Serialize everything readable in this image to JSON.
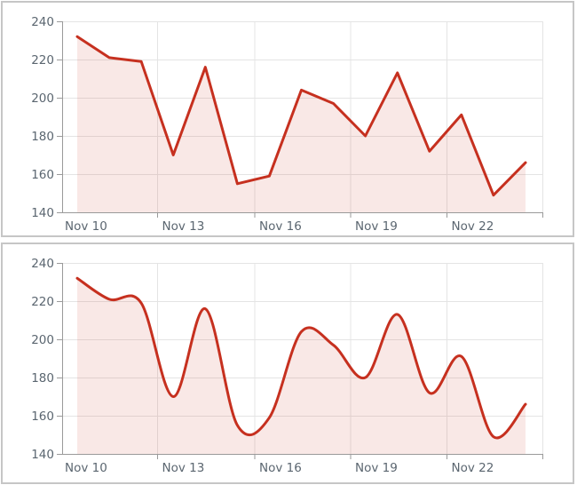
{
  "page": {
    "description": "Two stacked area charts of the same daily series, top with straight segments, bottom smoothed",
    "panel_border_color": "#c6c6c6",
    "background_color": "#ffffff"
  },
  "chart_data": [
    {
      "type": "area",
      "line_style": "linear",
      "title": "",
      "xlabel": "",
      "ylabel": "",
      "categories": [
        "Nov 10",
        "Nov 11",
        "Nov 12",
        "Nov 13",
        "Nov 14",
        "Nov 15",
        "Nov 16",
        "Nov 17",
        "Nov 18",
        "Nov 19",
        "Nov 20",
        "Nov 21",
        "Nov 22",
        "Nov 23",
        "Nov 24"
      ],
      "values": [
        232,
        221,
        219,
        170,
        216,
        155,
        159,
        204,
        197,
        180,
        213,
        172,
        191,
        149,
        166
      ],
      "x_tick_labels": [
        "Nov 10",
        "Nov 13",
        "Nov 16",
        "Nov 19",
        "Nov 22"
      ],
      "y_ticks": [
        240,
        220,
        200,
        180,
        160,
        140
      ],
      "ylim": [
        140,
        240
      ],
      "grid": true,
      "legend": "none",
      "colors": {
        "line": "#c6301f",
        "fill_rgba": "rgba(198,45,28,0.11)",
        "grid": "#e4e4e4",
        "axis": "#9a9a9a",
        "tick_text": "#5b6670"
      }
    },
    {
      "type": "area",
      "line_style": "spline",
      "title": "",
      "xlabel": "",
      "ylabel": "",
      "categories": [
        "Nov 10",
        "Nov 11",
        "Nov 12",
        "Nov 13",
        "Nov 14",
        "Nov 15",
        "Nov 16",
        "Nov 17",
        "Nov 18",
        "Nov 19",
        "Nov 20",
        "Nov 21",
        "Nov 22",
        "Nov 23",
        "Nov 24"
      ],
      "values": [
        232,
        221,
        219,
        170,
        216,
        155,
        159,
        204,
        197,
        180,
        213,
        172,
        191,
        149,
        166
      ],
      "x_tick_labels": [
        "Nov 10",
        "Nov 13",
        "Nov 16",
        "Nov 19",
        "Nov 22"
      ],
      "y_ticks": [
        240,
        220,
        200,
        180,
        160,
        140
      ],
      "ylim": [
        140,
        240
      ],
      "grid": true,
      "legend": "none",
      "colors": {
        "line": "#c6301f",
        "fill_rgba": "rgba(198,45,28,0.11)",
        "grid": "#e4e4e4",
        "axis": "#9a9a9a",
        "tick_text": "#5b6670"
      }
    }
  ]
}
